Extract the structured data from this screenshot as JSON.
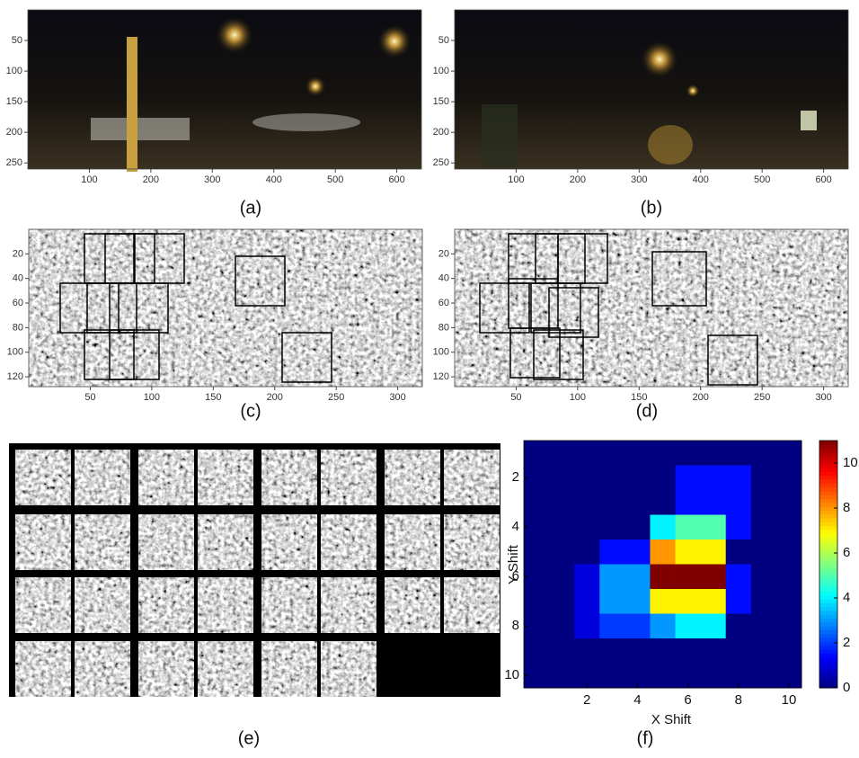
{
  "panels": [
    {
      "label": "(a)",
      "xlim": [
        0,
        640
      ],
      "ylim": [
        0,
        260
      ],
      "xticks": [
        100,
        200,
        300,
        400,
        500,
        600
      ],
      "yticks": [
        50,
        100,
        150,
        200,
        250
      ]
    },
    {
      "label": "(b)",
      "xlim": [
        0,
        640
      ],
      "ylim": [
        0,
        260
      ],
      "xticks": [
        100,
        200,
        300,
        400,
        500,
        600
      ],
      "yticks": [
        50,
        100,
        150,
        200,
        250
      ]
    },
    {
      "label": "(c)",
      "xlim": [
        0,
        320
      ],
      "ylim": [
        0,
        128
      ],
      "xticks": [
        50,
        100,
        150,
        200,
        250,
        300
      ],
      "yticks": [
        20,
        40,
        60,
        80,
        100,
        120
      ]
    },
    {
      "label": "(d)",
      "xlim": [
        0,
        320
      ],
      "ylim": [
        0,
        128
      ],
      "xticks": [
        50,
        100,
        150,
        200,
        250,
        300
      ],
      "yticks": [
        20,
        40,
        60,
        80,
        100,
        120
      ]
    },
    {
      "label": "(e)"
    }
  ],
  "chart_data": {
    "type": "heatmap",
    "label": "(f)",
    "xlabel": "X Shift",
    "ylabel": "Y Shift",
    "x": [
      0,
      1,
      2,
      3,
      4,
      5,
      6,
      7,
      8,
      9,
      10
    ],
    "y": [
      1,
      2,
      3,
      4,
      5,
      6,
      7,
      8,
      9,
      10
    ],
    "z": [
      [
        0,
        0,
        0,
        0,
        0,
        0,
        0,
        0,
        0,
        0,
        0
      ],
      [
        0,
        0,
        0,
        0,
        0,
        0,
        1.5,
        1.5,
        1.5,
        0,
        0
      ],
      [
        0,
        0,
        0,
        0,
        0,
        0,
        1.5,
        1.5,
        1.5,
        0,
        0
      ],
      [
        0,
        0,
        0,
        0,
        0,
        4,
        5,
        5,
        1.5,
        0,
        0
      ],
      [
        0,
        0,
        0,
        1.5,
        1.5,
        8,
        7,
        7,
        0,
        0,
        0
      ],
      [
        0,
        0,
        1,
        3,
        3,
        11,
        11,
        11,
        1.5,
        0,
        0
      ],
      [
        0,
        0,
        1,
        3,
        3,
        7,
        7,
        7,
        1.5,
        0,
        0
      ],
      [
        0,
        0,
        1,
        2,
        2,
        3,
        4,
        4,
        0,
        0,
        0
      ],
      [
        0,
        0,
        0,
        0,
        0,
        0,
        0,
        0,
        0,
        0,
        0
      ],
      [
        0,
        0,
        0,
        0,
        0,
        0,
        0,
        0,
        0,
        0,
        0
      ]
    ],
    "xlim": [
      -0.5,
      10.5
    ],
    "ylim": [
      0.5,
      10.5
    ],
    "xticks": [
      2,
      4,
      6,
      8,
      10
    ],
    "yticks": [
      2,
      4,
      6,
      8,
      10
    ],
    "clim": [
      0,
      11
    ],
    "cticks": [
      0,
      2,
      4,
      6,
      8,
      10
    ],
    "colormap": "jet"
  }
}
